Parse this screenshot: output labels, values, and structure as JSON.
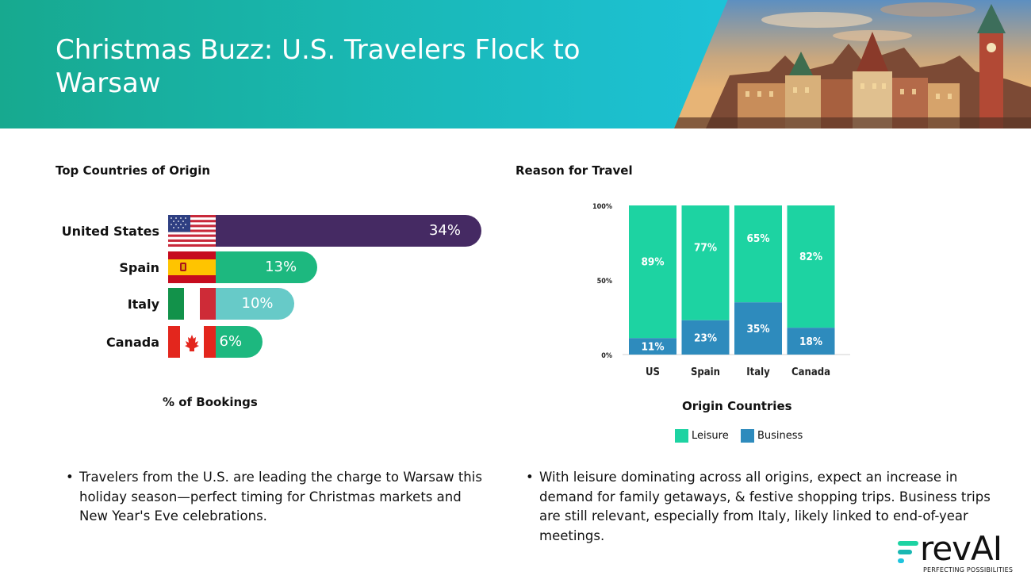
{
  "header": {
    "title": "Christmas Buzz: U.S. Travelers Flock to Warsaw"
  },
  "left_section": {
    "title": "Top Countries of Origin",
    "axis_caption": "% of Bookings"
  },
  "right_section": {
    "title": "Reason for Travel",
    "x_caption": "Origin Countries"
  },
  "colors": {
    "banner_start": "#17a98f",
    "banner_end": "#1ec4de",
    "us_bar": "#452a63",
    "spain_bar": "#1db87f",
    "italy_bar": "#67cac8",
    "canada_bar": "#1db87f",
    "leisure": "#1dd3a2",
    "business": "#2e8bbd"
  },
  "chart_data": [
    {
      "type": "bar",
      "orientation": "horizontal",
      "title": "Top Countries of Origin",
      "xlabel": "% of Bookings",
      "categories": [
        "United States",
        "Spain",
        "Italy",
        "Canada"
      ],
      "values": [
        34,
        13,
        10,
        6
      ],
      "value_labels": [
        "34%",
        "13%",
        "10%",
        "6%"
      ],
      "icons": [
        "us-flag-icon",
        "spain-flag-icon",
        "italy-flag-icon",
        "canada-flag-icon"
      ],
      "colors": [
        "#452a63",
        "#1db87f",
        "#67cac8",
        "#1db87f"
      ]
    },
    {
      "type": "bar",
      "stacked": true,
      "title": "Reason for Travel",
      "xlabel": "Origin Countries",
      "categories": [
        "US",
        "Spain",
        "Italy",
        "Canada"
      ],
      "yticks": [
        "0%",
        "50%",
        "100%"
      ],
      "ylim": [
        0,
        100
      ],
      "series": [
        {
          "name": "Business",
          "values": [
            11,
            23,
            35,
            18
          ],
          "labels": [
            "11%",
            "23%",
            "35%",
            "18%"
          ],
          "color": "#2e8bbd"
        },
        {
          "name": "Leisure",
          "values": [
            89,
            77,
            65,
            82
          ],
          "labels": [
            "89%",
            "77%",
            "65%",
            "82%"
          ],
          "color": "#1dd3a2"
        }
      ],
      "legend": {
        "position": "bottom",
        "items": [
          "Leisure",
          "Business"
        ]
      }
    }
  ],
  "bullets": {
    "left": "Travelers from the U.S. are leading the charge to Warsaw this holiday season—perfect timing for Christmas markets and New Year's Eve celebrations.",
    "right": "With leisure dominating across all origins, expect an increase in demand for family getaways, & festive shopping trips. Business trips are still relevant, especially from Italy, likely linked to end-of-year meetings."
  },
  "logo": {
    "wordmark": "revAI",
    "tagline": "PERFECTING POSSIBILITIES"
  }
}
